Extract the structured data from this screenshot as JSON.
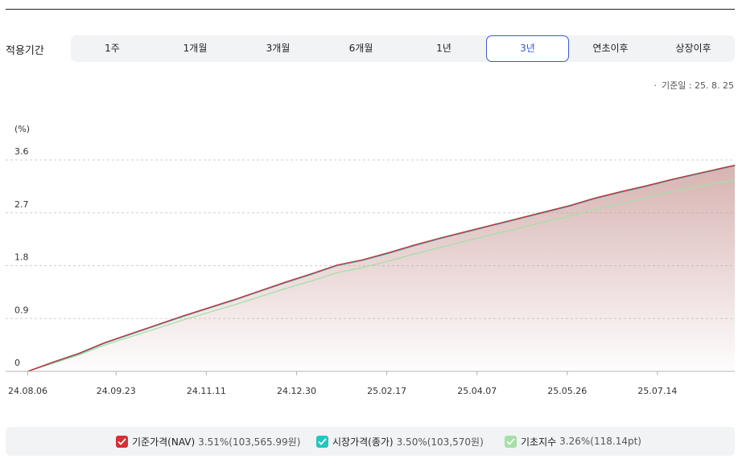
{
  "period": {
    "label": "적용기간",
    "tabs": [
      "1주",
      "1개월",
      "3개월",
      "6개월",
      "1년",
      "3년",
      "연초이후",
      "상장이후"
    ],
    "active_index": 5
  },
  "asof": "기준일 : 25. 8. 25",
  "colors": {
    "nav": "#c0393f",
    "market": "#2ec4bd",
    "index": "#a6dfa8",
    "active_tab": "#2f54eb"
  },
  "legend": [
    {
      "name": "기준가격(NAV)",
      "value": "3.51%(103,565.99원)",
      "color": "#d62f35"
    },
    {
      "name": "시장가격(종가)",
      "value": "3.50%(103,570원)",
      "color": "#21c7c0"
    },
    {
      "name": "기초지수",
      "value": "3.26%(118.14pt)",
      "color": "#a6dfa8"
    }
  ],
  "chart_data": {
    "type": "area",
    "ylabel": "(%)",
    "ylim": [
      0,
      3.6
    ],
    "yticks": [
      0,
      0.9,
      1.8,
      2.7,
      3.6
    ],
    "ytick_labels": [
      "0",
      "0.9",
      "1.8",
      "2.7",
      "3.6"
    ],
    "xlim": [
      "2024-07-25",
      "2025-08-25"
    ],
    "xticks": [
      "2024-08-06",
      "2024-09-23",
      "2024-11-11",
      "2024-12-30",
      "2025-02-17",
      "2025-04-07",
      "2025-05-26",
      "2025-07-14"
    ],
    "xtick_labels": [
      "24.08.06",
      "24.09.23",
      "24.11.11",
      "24.12.30",
      "25.02.17",
      "25.04.07",
      "25.05.26",
      "25.07.14"
    ],
    "grid": "horizontal-dashed",
    "x": [
      "2024-08-06",
      "2024-08-20",
      "2024-09-03",
      "2024-09-17",
      "2024-10-01",
      "2024-10-15",
      "2024-10-29",
      "2024-11-12",
      "2024-11-26",
      "2024-12-10",
      "2024-12-24",
      "2025-01-07",
      "2025-01-21",
      "2025-02-04",
      "2025-02-18",
      "2025-03-04",
      "2025-03-18",
      "2025-04-01",
      "2025-04-15",
      "2025-04-29",
      "2025-05-13",
      "2025-05-27",
      "2025-06-10",
      "2025-06-24",
      "2025-07-08",
      "2025-07-22",
      "2025-08-05",
      "2025-08-25"
    ],
    "series": [
      {
        "name": "기준가격(NAV)",
        "values": [
          0.0,
          0.16,
          0.31,
          0.49,
          0.64,
          0.79,
          0.94,
          1.08,
          1.22,
          1.37,
          1.52,
          1.66,
          1.81,
          1.9,
          2.02,
          2.15,
          2.27,
          2.38,
          2.49,
          2.6,
          2.71,
          2.82,
          2.95,
          3.06,
          3.16,
          3.27,
          3.37,
          3.51
        ]
      },
      {
        "name": "시장가격(종가)",
        "values": [
          0.0,
          0.15,
          0.3,
          0.48,
          0.63,
          0.78,
          0.93,
          1.07,
          1.21,
          1.36,
          1.51,
          1.65,
          1.8,
          1.89,
          2.01,
          2.14,
          2.26,
          2.37,
          2.48,
          2.59,
          2.7,
          2.81,
          2.94,
          3.05,
          3.15,
          3.26,
          3.36,
          3.5
        ]
      },
      {
        "name": "기초지수",
        "values": [
          0.0,
          0.14,
          0.28,
          0.45,
          0.59,
          0.73,
          0.87,
          1.0,
          1.13,
          1.27,
          1.41,
          1.54,
          1.68,
          1.77,
          1.88,
          2.0,
          2.11,
          2.22,
          2.33,
          2.43,
          2.54,
          2.64,
          2.76,
          2.86,
          2.96,
          3.06,
          3.15,
          3.26
        ]
      }
    ]
  }
}
